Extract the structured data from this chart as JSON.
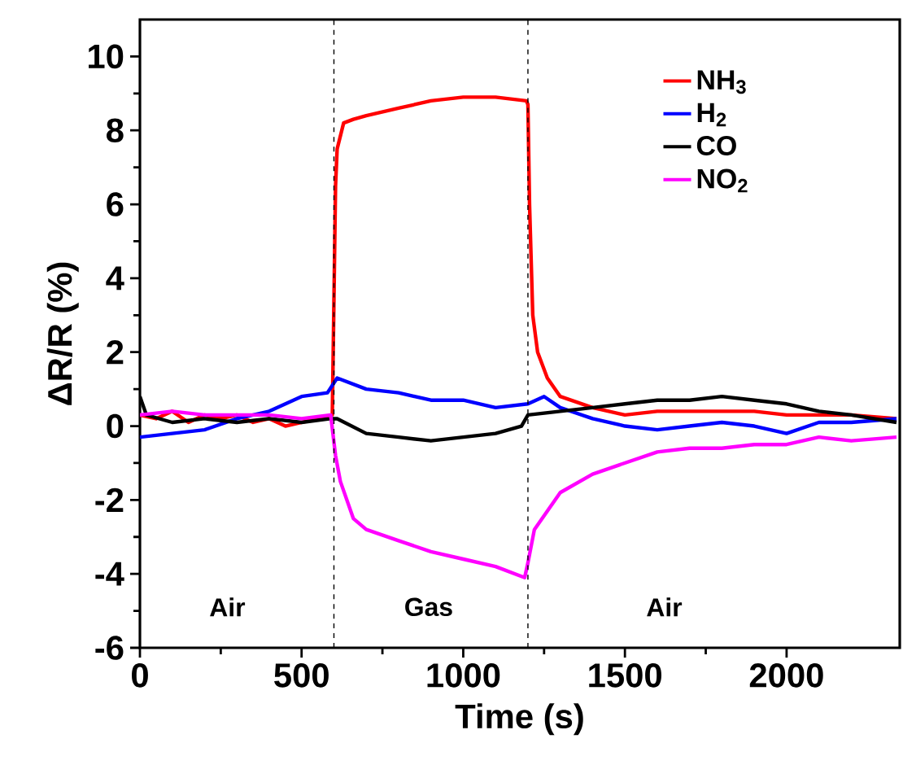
{
  "chart_data": {
    "type": "line",
    "xlabel": "Time (s)",
    "ylabel": "ΔR/R (%)",
    "xlim": [
      0,
      2350
    ],
    "ylim": [
      -6,
      11
    ],
    "xticks": [
      0,
      500,
      1000,
      1500,
      2000
    ],
    "yticks": [
      -6,
      -4,
      -2,
      0,
      2,
      4,
      6,
      8,
      10
    ],
    "grid": false,
    "legend": "top right",
    "marker": "none",
    "line_style": "solid",
    "ref_lines": [
      {
        "axis": "x",
        "value": 600,
        "color": "#000000",
        "line_style": "dashed"
      },
      {
        "axis": "x",
        "value": 1200,
        "color": "#000000",
        "line_style": "dashed"
      }
    ],
    "annotations": [
      "Air",
      "Gas",
      "Air"
    ],
    "series": [
      {
        "name": "NH$_{3}$",
        "color": "#ff0000",
        "x": [
          0,
          50,
          100,
          150,
          200,
          250,
          300,
          350,
          400,
          450,
          500,
          550,
          595,
          601,
          605,
          610,
          630,
          660,
          700,
          800,
          900,
          1000,
          1100,
          1195,
          1200,
          1205,
          1215,
          1230,
          1260,
          1300,
          1400,
          1500,
          1600,
          1700,
          1800,
          1900,
          2000,
          2100,
          2200,
          2340
        ],
        "values": [
          0.3,
          0.2,
          0.4,
          0.1,
          0.3,
          0.2,
          0.3,
          0.1,
          0.2,
          0.0,
          0.1,
          0.2,
          0.3,
          4.0,
          6.5,
          7.5,
          8.2,
          8.3,
          8.4,
          8.6,
          8.8,
          8.9,
          8.9,
          8.8,
          8.7,
          6.0,
          3.0,
          2.0,
          1.3,
          0.8,
          0.5,
          0.3,
          0.4,
          0.4,
          0.4,
          0.4,
          0.3,
          0.3,
          0.3,
          0.2
        ]
      },
      {
        "name": "H$_{2}$",
        "color": "#0000ff",
        "x": [
          0,
          100,
          200,
          300,
          400,
          500,
          580,
          610,
          700,
          800,
          900,
          1000,
          1100,
          1200,
          1250,
          1300,
          1400,
          1500,
          1600,
          1700,
          1800,
          1900,
          2000,
          2100,
          2200,
          2340
        ],
        "values": [
          -0.3,
          -0.2,
          -0.1,
          0.2,
          0.4,
          0.8,
          0.9,
          1.3,
          1.0,
          0.9,
          0.7,
          0.7,
          0.5,
          0.6,
          0.8,
          0.5,
          0.2,
          0.0,
          -0.1,
          0.0,
          0.1,
          0.0,
          -0.2,
          0.1,
          0.1,
          0.2
        ]
      },
      {
        "name": "CO",
        "color": "#000000",
        "x": [
          0,
          20,
          100,
          200,
          300,
          400,
          500,
          590,
          610,
          700,
          800,
          900,
          1000,
          1100,
          1180,
          1200,
          1300,
          1400,
          1500,
          1600,
          1700,
          1800,
          1900,
          2000,
          2100,
          2200,
          2340
        ],
        "values": [
          0.8,
          0.3,
          0.1,
          0.2,
          0.1,
          0.2,
          0.1,
          0.2,
          0.2,
          -0.2,
          -0.3,
          -0.4,
          -0.3,
          -0.2,
          0.0,
          0.3,
          0.4,
          0.5,
          0.6,
          0.7,
          0.7,
          0.8,
          0.7,
          0.6,
          0.4,
          0.3,
          0.1
        ]
      },
      {
        "name": "NO$_{2}$",
        "color": "#ff00ff",
        "x": [
          0,
          100,
          200,
          300,
          400,
          500,
          590,
          605,
          620,
          660,
          700,
          800,
          900,
          1000,
          1100,
          1190,
          1200,
          1220,
          1300,
          1400,
          1500,
          1600,
          1700,
          1800,
          1900,
          2000,
          2100,
          2200,
          2340
        ],
        "values": [
          0.3,
          0.4,
          0.3,
          0.3,
          0.3,
          0.2,
          0.3,
          -0.8,
          -1.5,
          -2.5,
          -2.8,
          -3.1,
          -3.4,
          -3.6,
          -3.8,
          -4.1,
          -3.7,
          -2.8,
          -1.8,
          -1.3,
          -1.0,
          -0.7,
          -0.6,
          -0.6,
          -0.5,
          -0.5,
          -0.3,
          -0.4,
          -0.3
        ]
      }
    ]
  }
}
